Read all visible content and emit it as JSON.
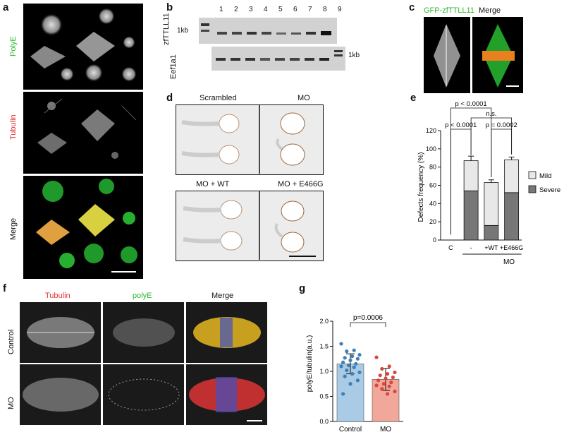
{
  "panels": {
    "a": {
      "letter": "a",
      "channels": [
        "PolyE",
        "Tubulin",
        "Merge"
      ],
      "channel_colors": [
        "#2eb82e",
        "#e03030",
        "#222222"
      ]
    },
    "b": {
      "letter": "b",
      "gene_top": "zfTTLL11",
      "gene_bottom": "Eef1a1",
      "marker": "1kb",
      "marker_right": "1kb",
      "lanes": [
        "1",
        "2",
        "3",
        "4",
        "5",
        "6",
        "7",
        "8",
        "9"
      ]
    },
    "c": {
      "letter": "c",
      "title_left": "GFP-zfTTLL11",
      "title_right": "Merge"
    },
    "d": {
      "letter": "d",
      "conditions": [
        "Scrambled",
        "MO",
        "MO + WT",
        "MO + E466G"
      ]
    },
    "f": {
      "letter": "f",
      "columns": [
        "Tubulin",
        "polyE",
        "Merge"
      ],
      "column_colors": [
        "#e03030",
        "#2eb82e",
        "#222222"
      ],
      "rows": [
        "Control",
        "MO"
      ]
    }
  },
  "chart_data": [
    {
      "id": "e",
      "letter": "e",
      "type": "bar",
      "stacked": true,
      "ylabel": "Defects frequency (%)",
      "ylim": [
        0,
        120
      ],
      "yticks": [
        0,
        20,
        40,
        60,
        80,
        100,
        120
      ],
      "categories": [
        "C",
        "-",
        "+WT",
        "+E466G"
      ],
      "group_label": "MO",
      "series": [
        {
          "name": "Severe",
          "color": "#777777",
          "values": [
            0,
            54,
            16,
            52
          ],
          "errors": [
            0,
            3,
            2,
            0
          ]
        },
        {
          "name": "Mild",
          "color": "#e8e8e8",
          "values": [
            0,
            33,
            47,
            36
          ],
          "errors": [
            0,
            5,
            3,
            3
          ]
        }
      ],
      "legend": [
        "Mild",
        "Severe"
      ],
      "annotations": [
        {
          "text": "p < 0.0001",
          "from": "C",
          "to": "+WT"
        },
        {
          "text": "n.s.",
          "from": "-",
          "to": "+E466G"
        },
        {
          "text": "p < 0.0001",
          "from": "C",
          "to": "-"
        },
        {
          "text": "p = 0.0002",
          "from": "+WT",
          "to": "+E466G"
        }
      ]
    },
    {
      "id": "g",
      "letter": "g",
      "type": "bar",
      "ylabel": "polyE/tubulin(a.u.)",
      "ylim": [
        0,
        2.0
      ],
      "yticks": [
        "0.0",
        "0.5",
        "1.0",
        "1.5",
        "2.0"
      ],
      "categories": [
        "Control",
        "MO"
      ],
      "values": [
        1.15,
        0.84
      ],
      "errors": [
        0.2,
        0.22
      ],
      "colors": [
        "#a9cbe6",
        "#f2a79b"
      ],
      "point_colors": [
        "#3f7fb5",
        "#d9473a"
      ],
      "points": [
        [
          1.55,
          1.42,
          1.4,
          1.33,
          1.3,
          1.27,
          1.25,
          1.22,
          1.18,
          1.15,
          1.12,
          1.1,
          1.08,
          1.02,
          0.98,
          0.95,
          0.9,
          0.82,
          0.75,
          0.55
        ],
        [
          1.28,
          1.1,
          1.05,
          0.98,
          0.95,
          0.92,
          0.88,
          0.86,
          0.82,
          0.78,
          0.75,
          0.72,
          0.7,
          0.65,
          0.6,
          0.55
        ]
      ],
      "annotation": "p=0.0006"
    }
  ]
}
